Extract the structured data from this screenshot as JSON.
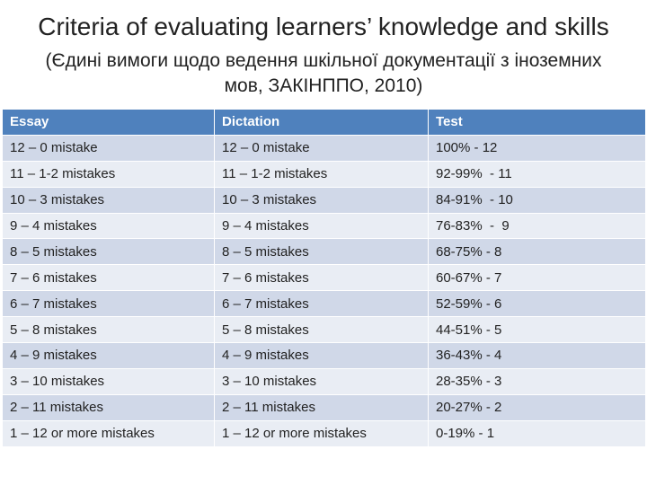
{
  "header": {
    "title": "Criteria of evaluating learners’ knowledge and skills",
    "subtitle": "(Єдині вимоги щодо ведення шкільної документації з іноземних мов, ЗАКІНППО, 2010)"
  },
  "table": {
    "columns": [
      "Essay",
      "Dictation",
      "Test"
    ],
    "rows": [
      [
        "12 – 0 mistake",
        "12 – 0 mistake",
        "100% - 12"
      ],
      [
        "11 – 1-2 mistakes",
        "11 – 1-2 mistakes",
        "92-99%  - 11"
      ],
      [
        "10 – 3 mistakes",
        "10 – 3 mistakes",
        "84-91%  - 10"
      ],
      [
        "9 – 4 mistakes",
        "9 – 4 mistakes",
        "76-83%  -  9"
      ],
      [
        "8 – 5 mistakes",
        "8 – 5 mistakes",
        "68-75% - 8"
      ],
      [
        "7 – 6 mistakes",
        "7 – 6 mistakes",
        "60-67% - 7"
      ],
      [
        "6 – 7 mistakes",
        "6 – 7 mistakes",
        "52-59% - 6"
      ],
      [
        "5 – 8 mistakes",
        "5 – 8 mistakes",
        "44-51% - 5"
      ],
      [
        "4 – 9 mistakes",
        "4 – 9 mistakes",
        "36-43% - 4"
      ],
      [
        "3 – 10 mistakes",
        "3 – 10 mistakes",
        "28-35% - 3"
      ],
      [
        "2 – 11 mistakes",
        "2 – 11 mistakes",
        "20-27% - 2"
      ],
      [
        "1 – 12 or more mistakes",
        "1 – 12 or more mistakes",
        "0-19% - 1"
      ]
    ]
  }
}
